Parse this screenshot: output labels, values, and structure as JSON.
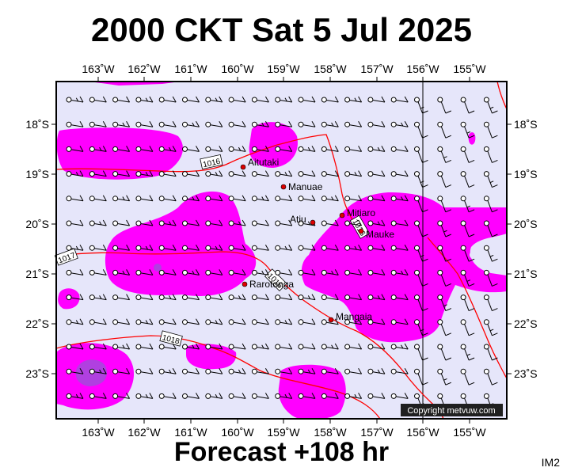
{
  "title": "2000 CKT Sat 5 Jul 2025",
  "footer": "Forecast +108 hr",
  "image_tag": "IM2",
  "credit": "Copyright metvuw.com",
  "colors": {
    "ocean": "#e6e6fa",
    "precip": "#ff00ff",
    "precip_heavy": "#b040e0",
    "isobar": "#ff0000",
    "land_marker": "#dd0000"
  },
  "lon_labels": [
    "163˚W",
    "162˚W",
    "161˚W",
    "160˚W",
    "159˚W",
    "158˚W",
    "157˚W",
    "156˚W",
    "155˚W"
  ],
  "lat_labels": [
    "18˚S",
    "19˚S",
    "20˚S",
    "21˚S",
    "22˚S",
    "23˚S"
  ],
  "places": [
    {
      "name": "Aitutaki"
    },
    {
      "name": "Manuae"
    },
    {
      "name": "Atiu"
    },
    {
      "name": "Mitiaro"
    },
    {
      "name": "Mauke"
    },
    {
      "name": "Rarotonga"
    },
    {
      "name": "Mangaia"
    }
  ],
  "isobar_labels": [
    "1016",
    "1017",
    "1016",
    "1016",
    "1018"
  ]
}
